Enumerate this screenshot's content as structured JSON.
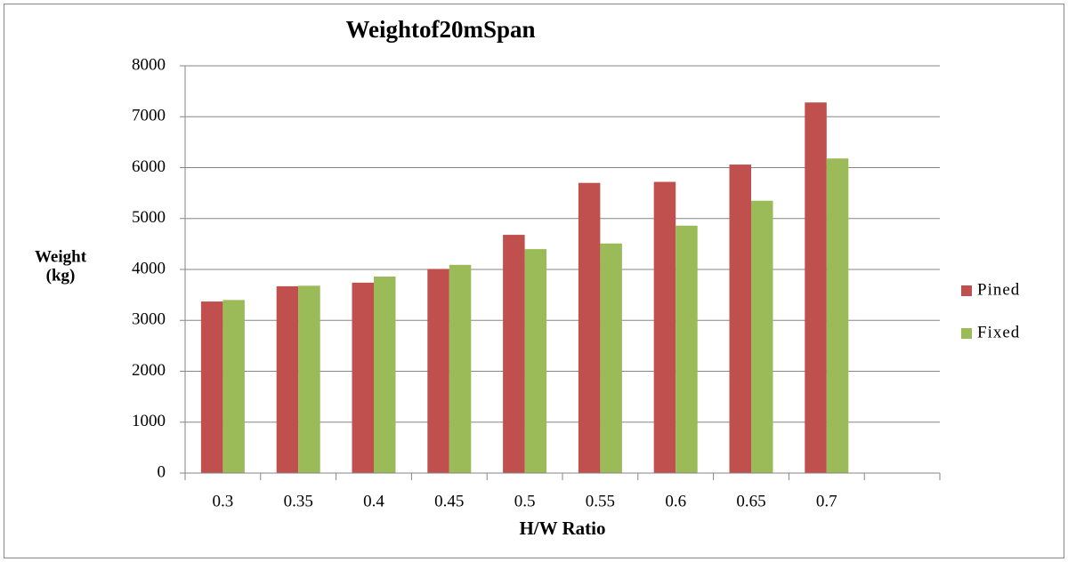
{
  "chart_data": {
    "type": "bar",
    "title": "Weightof20mSpan",
    "xlabel": "H/W Ratio",
    "ylabel": [
      "Weight",
      "(kg)"
    ],
    "categories": [
      "0.3",
      "0.35",
      "0.4",
      "0.45",
      "0.5",
      "0.55",
      "0.6",
      "0.65",
      "0.7",
      null
    ],
    "series": [
      {
        "name": "Pined",
        "color": "#c0504d",
        "values": [
          3370,
          3670,
          3740,
          4010,
          4680,
          5700,
          5720,
          6060,
          7280,
          null
        ]
      },
      {
        "name": "Fixed",
        "color": "#9bbb59",
        "values": [
          3400,
          3680,
          3860,
          4090,
          4400,
          4510,
          4860,
          5350,
          6180,
          null
        ]
      }
    ],
    "ylim": [
      0,
      8000
    ],
    "yticks": [
      0,
      1000,
      2000,
      3000,
      4000,
      5000,
      6000,
      7000,
      8000
    ],
    "grid": true,
    "legend": "right"
  }
}
